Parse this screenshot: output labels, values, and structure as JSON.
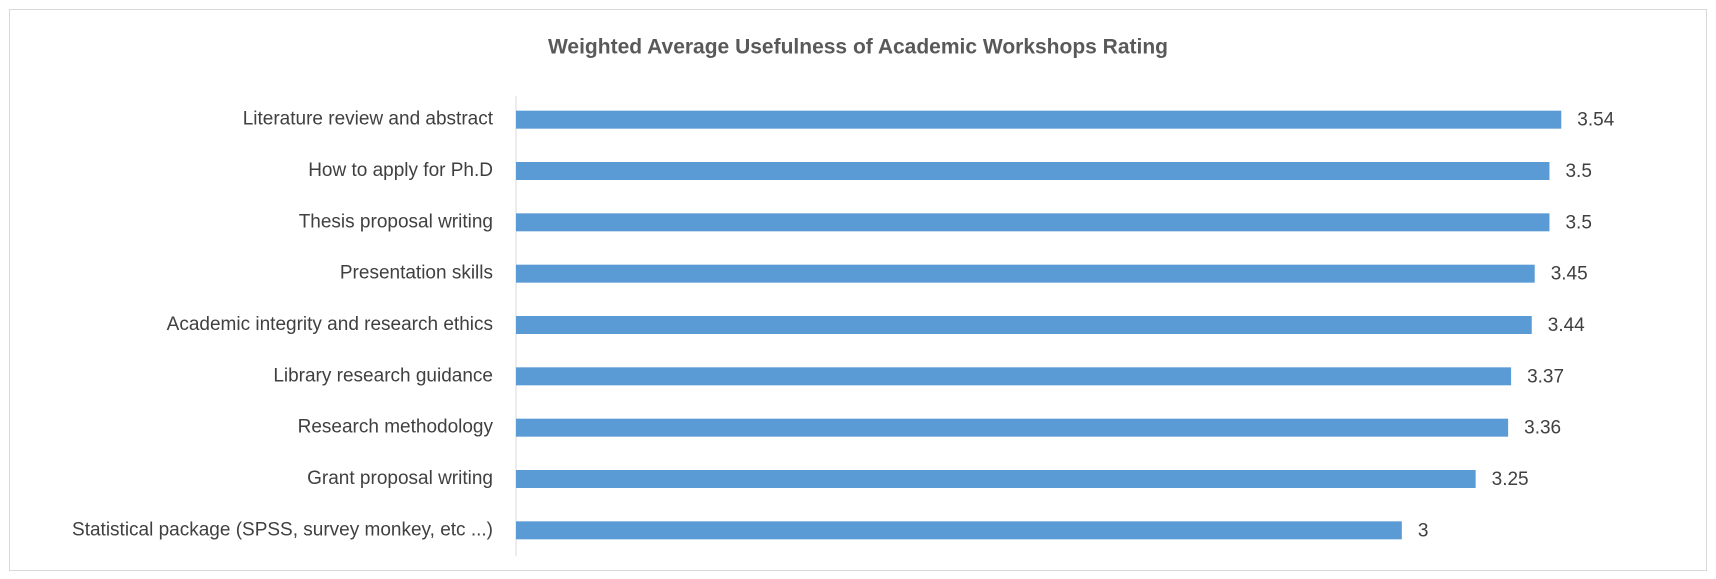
{
  "chart_data": {
    "type": "bar",
    "orientation": "horizontal",
    "title": "Weighted Average Usefulness of Academic Workshops Rating",
    "categories": [
      "Literature review and abstract",
      "How to apply for Ph.D",
      "Thesis proposal writing",
      "Presentation skills",
      "Academic integrity and research ethics",
      "Library research guidance",
      "Research methodology",
      "Grant proposal writing",
      "Statistical package (SPSS, survey monkey, etc ...)"
    ],
    "values": [
      3.54,
      3.5,
      3.5,
      3.45,
      3.44,
      3.37,
      3.36,
      3.25,
      3
    ],
    "color": "#5b9bd5",
    "xlim": [
      0,
      3.6
    ]
  }
}
